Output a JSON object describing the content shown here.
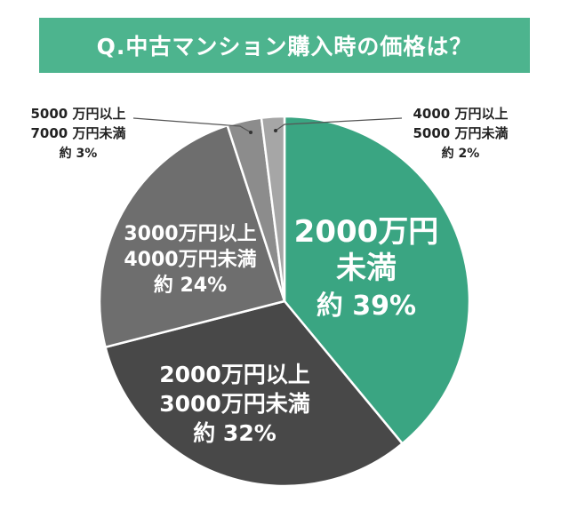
{
  "title": "Q.中古マンション購入時の価格は？",
  "chart_data": {
    "type": "pie",
    "title": "Q.中古マンション購入時の価格は？",
    "slices": [
      {
        "label_lines": [
          "2000万円",
          "未満"
        ],
        "percent_text": "約 39%",
        "value": 39,
        "color": "#3aa582"
      },
      {
        "label_lines": [
          "2000万円以上",
          "3000万円未満"
        ],
        "percent_text": "約 32%",
        "value": 32,
        "color": "#484848"
      },
      {
        "label_lines": [
          "3000万円以上",
          "4000万円未満"
        ],
        "percent_text": "約 24%",
        "value": 24,
        "color": "#6e6e6e"
      },
      {
        "label_lines": [
          "5000 万円以上",
          "7000 万円未満"
        ],
        "percent_text": "約 3%",
        "value": 3,
        "color": "#8c8c8c"
      },
      {
        "label_lines": [
          "4000 万円以上",
          "5000 万円未満"
        ],
        "percent_text": "約 2%",
        "value": 2,
        "color": "#a6a6a6"
      }
    ]
  }
}
